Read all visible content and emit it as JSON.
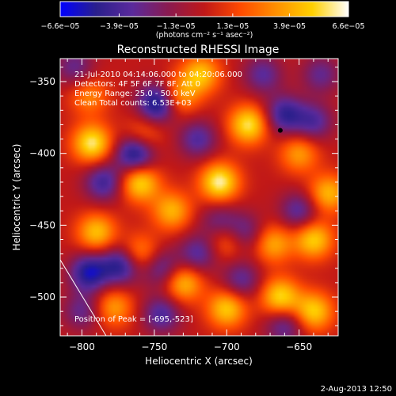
{
  "chart_data": {
    "type": "heatmap",
    "title": "Reconstructed RHESSI Image",
    "xlabel": "Heliocentric X (arcsec)",
    "ylabel": "Heliocentric Y (arcsec)",
    "xlim": [
      -815,
      -623
    ],
    "ylim": [
      -527,
      -334
    ],
    "x_ticks": [
      -800,
      -750,
      -700,
      -650
    ],
    "x_tick_labels": [
      "−800",
      "−750",
      "−700",
      "−650"
    ],
    "y_ticks": [
      -350,
      -400,
      -450,
      -500
    ],
    "y_tick_labels": [
      "−350",
      "−400",
      "−450",
      "−500"
    ],
    "colorbar": {
      "range": [
        -6.6e-05,
        6.6e-05
      ],
      "ticks": [
        -6.6e-05,
        -3.9e-05,
        -1.3e-05,
        1.3e-05,
        3.9e-05,
        6.6e-05
      ],
      "tick_labels": [
        "−6.6e−05",
        "−3.9e−05",
        "−1.3e−05",
        "1.3e−05",
        "3.9e−05",
        "6.6e−05"
      ],
      "units": "(photons cm⁻² s⁻¹ asec⁻²)",
      "colormap": [
        "#0000ff",
        "#2a1f8c",
        "#5a2a9c",
        "#8a1a50",
        "#c01818",
        "#ff4a00",
        "#ff9000",
        "#ffd000",
        "#ffffff"
      ]
    },
    "annotations": [
      "21-Jul-2010 04:14:06.000 to 04:20:06.000",
      "Detectors: 4F 5F 6F 7F 8F, Att 0",
      "Energy Range: 25.0 - 50.0 keV",
      "Clean     Total counts: 6.53E+03"
    ],
    "peak_label": "Position of Peak = [-695,-523]",
    "marked_point": {
      "x": -663,
      "y": -384
    },
    "sources": [
      {
        "x": -793,
        "y": -393,
        "value": 5.8e-05
      },
      {
        "x": -760,
        "y": -420,
        "value": 5.4e-05
      },
      {
        "x": -738,
        "y": -440,
        "value": 4.2e-05
      },
      {
        "x": -705,
        "y": -420,
        "value": 6.1e-05
      },
      {
        "x": -685,
        "y": -380,
        "value": 5.6e-05
      },
      {
        "x": -718,
        "y": -345,
        "value": 4.6e-05
      },
      {
        "x": -733,
        "y": -360,
        "value": 3.8e-05
      },
      {
        "x": -650,
        "y": -400,
        "value": 3.6e-05
      },
      {
        "x": -640,
        "y": -460,
        "value": 5e-05
      },
      {
        "x": -630,
        "y": -428,
        "value": 4.4e-05
      },
      {
        "x": -668,
        "y": -463,
        "value": 3.9e-05
      },
      {
        "x": -700,
        "y": -460,
        "value": 3.2e-05
      },
      {
        "x": -790,
        "y": -455,
        "value": 4.6e-05
      },
      {
        "x": -760,
        "y": -470,
        "value": 3.6e-05
      },
      {
        "x": -778,
        "y": -507,
        "value": 3.6e-05
      },
      {
        "x": -730,
        "y": -490,
        "value": 4.6e-05
      },
      {
        "x": -700,
        "y": -508,
        "value": 4.9e-05
      },
      {
        "x": -663,
        "y": -500,
        "value": 5.3e-05
      },
      {
        "x": -640,
        "y": -510,
        "value": 5e-05
      },
      {
        "x": -795,
        "y": -360,
        "value": 3e-05
      },
      {
        "x": -758,
        "y": -388,
        "value": 3e-05
      },
      {
        "x": -748,
        "y": -365,
        "value": -6.1e-05
      },
      {
        "x": -763,
        "y": -400,
        "value": -6.3e-05
      },
      {
        "x": -785,
        "y": -420,
        "value": -4.2e-05
      },
      {
        "x": -720,
        "y": -390,
        "value": -3.6e-05
      },
      {
        "x": -660,
        "y": -373,
        "value": -4.6e-05
      },
      {
        "x": -640,
        "y": -378,
        "value": -3.6e-05
      },
      {
        "x": -705,
        "y": -448,
        "value": -3e-05
      },
      {
        "x": -688,
        "y": -455,
        "value": -3.3e-05
      },
      {
        "x": -650,
        "y": -440,
        "value": -3.6e-05
      },
      {
        "x": -720,
        "y": -470,
        "value": -3.6e-05
      },
      {
        "x": -795,
        "y": -483,
        "value": -5.5e-05
      },
      {
        "x": -773,
        "y": -478,
        "value": -5.1e-05
      },
      {
        "x": -745,
        "y": -480,
        "value": -3.6e-05
      },
      {
        "x": -745,
        "y": -512,
        "value": -3.8e-05
      },
      {
        "x": -690,
        "y": -488,
        "value": -3.3e-05
      },
      {
        "x": -660,
        "y": -520,
        "value": -3.4e-05
      },
      {
        "x": -800,
        "y": -510,
        "value": -3e-05
      },
      {
        "x": -805,
        "y": -340,
        "value": -3e-05
      },
      {
        "x": -675,
        "y": -345,
        "value": -3.3e-05
      },
      {
        "x": -635,
        "y": -345,
        "value": -3e-05
      }
    ]
  },
  "footer": {
    "timestamp": "2-Aug-2013 12:50"
  }
}
